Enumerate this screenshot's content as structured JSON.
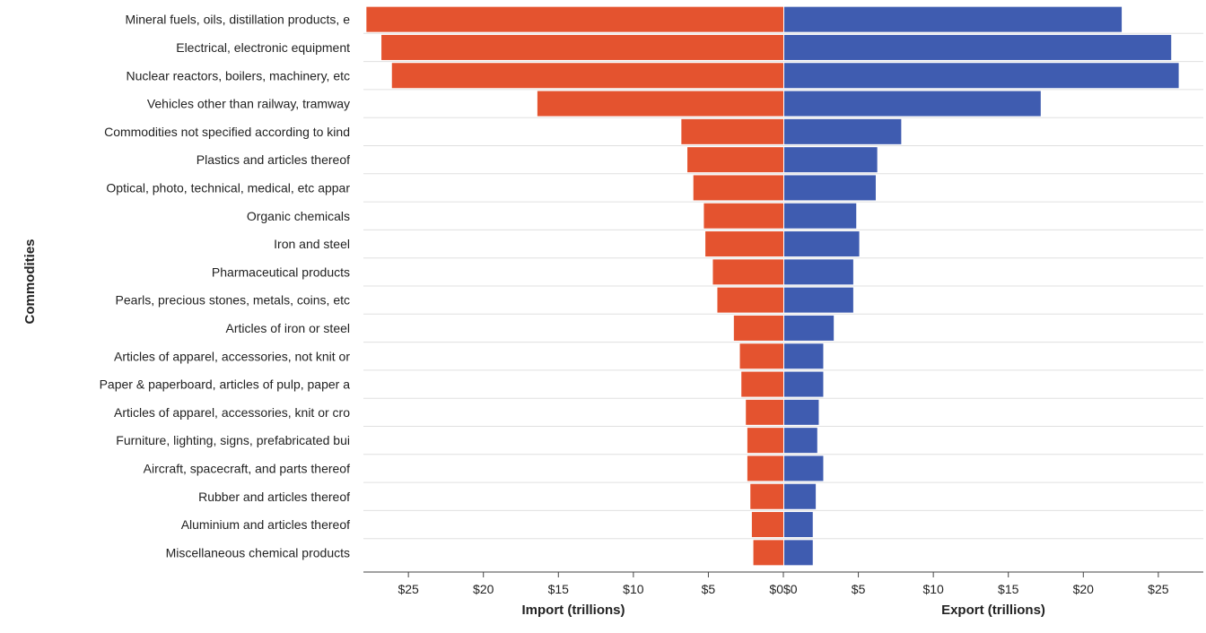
{
  "chart_data": {
    "type": "bar",
    "orientation": "horizontal",
    "layout": "diverging",
    "ylabel": "Commodities",
    "categories": [
      "Mineral fuels, oils, distillation products, e",
      "Electrical, electronic equipment",
      "Nuclear reactors, boilers, machinery, etc",
      "Vehicles other than railway, tramway",
      "Commodities not specified according to kind",
      "Plastics and articles thereof",
      "Optical, photo, technical, medical, etc appar",
      "Organic chemicals",
      "Iron and steel",
      "Pharmaceutical products",
      "Pearls, precious stones, metals, coins, etc",
      "Articles of iron or steel",
      "Articles of apparel, accessories, not knit or",
      "Paper & paperboard, articles of pulp, paper a",
      "Articles of apparel, accessories, knit or cro",
      "Furniture, lighting, signs, prefabricated bui",
      "Aircraft, spacecraft, and parts thereof",
      "Rubber and articles thereof",
      "Aluminium and articles thereof",
      "Miscellaneous chemical products"
    ],
    "panels": [
      {
        "side": "left",
        "xlabel": "Import (trillions)",
        "color": "#e4532f",
        "xlim": [
          0,
          28
        ],
        "ticks": [
          25,
          20,
          15,
          10,
          5,
          0
        ],
        "tick_labels": [
          "$25",
          "$20",
          "$15",
          "$10",
          "$5",
          "$0"
        ],
        "values": [
          27.8,
          26.8,
          26.1,
          16.4,
          6.8,
          6.4,
          6.0,
          5.3,
          5.2,
          4.7,
          4.4,
          3.3,
          2.9,
          2.8,
          2.5,
          2.4,
          2.4,
          2.2,
          2.1,
          2.0
        ]
      },
      {
        "side": "right",
        "xlabel": "Export (trillions)",
        "color": "#3f5cb0",
        "xlim": [
          0,
          28
        ],
        "ticks": [
          0,
          5,
          10,
          15,
          20,
          25
        ],
        "tick_labels": [
          "$0",
          "$5",
          "$10",
          "$15",
          "$20",
          "$25"
        ],
        "values": [
          22.5,
          25.8,
          26.3,
          17.1,
          7.8,
          6.2,
          6.1,
          4.8,
          5.0,
          4.6,
          4.6,
          3.3,
          2.6,
          2.6,
          2.3,
          2.2,
          2.6,
          2.1,
          1.9,
          1.9
        ]
      }
    ]
  }
}
